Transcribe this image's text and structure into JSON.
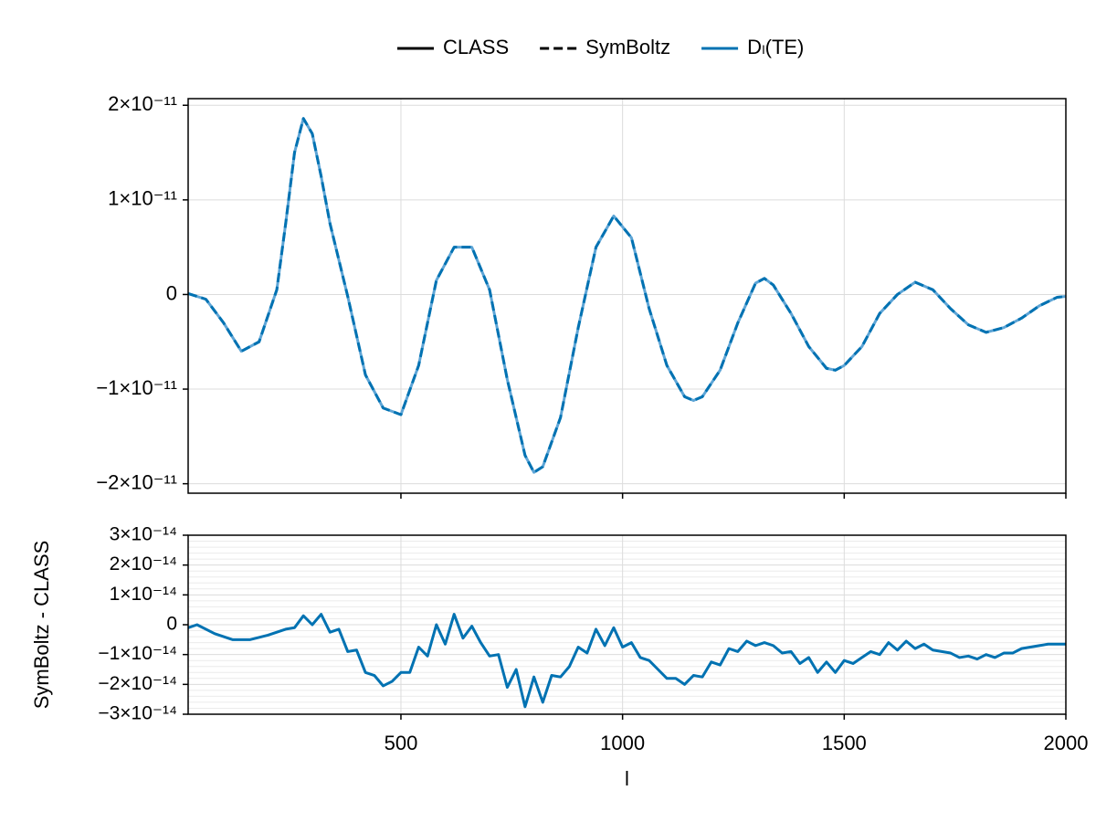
{
  "chart_data": [
    {
      "type": "line",
      "x": [
        20,
        60,
        100,
        140,
        180,
        220,
        240,
        260,
        280,
        300,
        320,
        340,
        380,
        420,
        460,
        500,
        540,
        580,
        620,
        660,
        700,
        740,
        780,
        800,
        820,
        860,
        900,
        940,
        980,
        1020,
        1060,
        1100,
        1140,
        1160,
        1180,
        1220,
        1260,
        1300,
        1320,
        1340,
        1380,
        1420,
        1460,
        1480,
        1500,
        1540,
        1580,
        1620,
        1660,
        1700,
        1740,
        1780,
        1820,
        1860,
        1900,
        1940,
        1980,
        2000
      ],
      "series": [
        {
          "name": "CLASS",
          "color": "#5ea5d6",
          "dash": "solid",
          "values": [
            1e-13,
            -5e-13,
            -3e-12,
            -6e-12,
            -5e-12,
            5e-13,
            7.5e-12,
            1.5e-11,
            1.86e-11,
            1.7e-11,
            1.25e-11,
            7.5e-12,
            -2e-13,
            -8.5e-12,
            -1.2e-11,
            -1.27e-11,
            -7.5e-12,
            1.5e-12,
            5e-12,
            5e-12,
            5e-13,
            -9e-12,
            -1.7e-11,
            -1.88e-11,
            -1.82e-11,
            -1.3e-11,
            -3.5e-12,
            5e-12,
            8.3e-12,
            6e-12,
            -1.5e-12,
            -7.5e-12,
            -1.08e-11,
            -1.12e-11,
            -1.08e-11,
            -8e-12,
            -3e-12,
            1.2e-12,
            1.7e-12,
            1e-12,
            -2e-12,
            -5.5e-12,
            -7.8e-12,
            -8e-12,
            -7.5e-12,
            -5.5e-12,
            -2e-12,
            0.0,
            1.3e-12,
            5e-13,
            -1.5e-12,
            -3.2e-12,
            -4e-12,
            -3.5e-12,
            -2.5e-12,
            -1.2e-12,
            -3e-13,
            -2e-13
          ]
        },
        {
          "name": "SymBoltz",
          "color": "#0072b2",
          "dash": "dashed",
          "values": [
            1e-13,
            -5e-13,
            -3e-12,
            -6e-12,
            -5e-12,
            5e-13,
            7.5e-12,
            1.5e-11,
            1.86e-11,
            1.7e-11,
            1.25e-11,
            7.5e-12,
            -2e-13,
            -8.5e-12,
            -1.2e-11,
            -1.27e-11,
            -7.5e-12,
            1.5e-12,
            5e-12,
            5e-12,
            5e-13,
            -9e-12,
            -1.7e-11,
            -1.88e-11,
            -1.82e-11,
            -1.3e-11,
            -3.5e-12,
            5e-12,
            8.3e-12,
            6e-12,
            -1.5e-12,
            -7.5e-12,
            -1.08e-11,
            -1.12e-11,
            -1.08e-11,
            -8e-12,
            -3e-12,
            1.2e-12,
            1.7e-12,
            1e-12,
            -2e-12,
            -5.5e-12,
            -7.8e-12,
            -8e-12,
            -7.5e-12,
            -5.5e-12,
            -2e-12,
            0.0,
            1.3e-12,
            5e-13,
            -1.5e-12,
            -3.2e-12,
            -4e-12,
            -3.5e-12,
            -2.5e-12,
            -1.2e-12,
            -3e-13,
            -2e-13
          ]
        }
      ],
      "quantity": {
        "name": "Dₗ(TE)",
        "color": "#0072b2"
      },
      "legend": "top",
      "legend_color": "#000000",
      "xlim": [
        20,
        2000
      ],
      "xticks": [
        500,
        1000,
        1500,
        2000
      ],
      "show_xtick_labels": false,
      "ylim": [
        -2.1e-11,
        2.07e-11
      ],
      "yticks": [
        {
          "value": -2e-11,
          "label": "−2×10⁻¹¹"
        },
        {
          "value": -1e-11,
          "label": "−1×10⁻¹¹"
        },
        0,
        {
          "value": 1e-11,
          "label": "1×10⁻¹¹"
        },
        {
          "value": 2e-11,
          "label": "2×10⁻¹¹"
        }
      ],
      "grid": true
    },
    {
      "type": "line",
      "x": [
        20,
        40,
        80,
        120,
        160,
        200,
        240,
        260,
        280,
        300,
        320,
        340,
        360,
        380,
        400,
        420,
        440,
        460,
        480,
        500,
        520,
        540,
        560,
        580,
        600,
        620,
        640,
        660,
        680,
        700,
        720,
        740,
        760,
        780,
        800,
        820,
        840,
        860,
        880,
        900,
        920,
        940,
        960,
        980,
        1000,
        1020,
        1040,
        1060,
        1080,
        1100,
        1120,
        1140,
        1160,
        1180,
        1200,
        1220,
        1240,
        1260,
        1280,
        1300,
        1320,
        1340,
        1360,
        1380,
        1400,
        1420,
        1440,
        1460,
        1480,
        1500,
        1520,
        1540,
        1560,
        1580,
        1600,
        1620,
        1640,
        1660,
        1680,
        1700,
        1720,
        1740,
        1760,
        1780,
        1800,
        1820,
        1840,
        1860,
        1880,
        1900,
        1920,
        1940,
        1960,
        2000
      ],
      "series": [
        {
          "name": "SymBoltz - CLASS",
          "color": "#0072b2",
          "dash": "solid",
          "values": [
            -1e-15,
            0.0,
            -3e-15,
            -5e-15,
            -5e-15,
            -3.5e-15,
            -1.5e-15,
            -1e-15,
            3e-15,
            0.0,
            3.5e-15,
            -2.5e-15,
            -1.5e-15,
            -9e-15,
            -8.5e-15,
            -1.6e-14,
            -1.7e-14,
            -2.05e-14,
            -1.9e-14,
            -1.6e-14,
            -1.6e-14,
            -7.5e-15,
            -1.05e-14,
            0.0,
            -6.5e-15,
            3.5e-15,
            -4.5e-15,
            -5e-16,
            -6e-15,
            -1.05e-14,
            -1e-14,
            -2.1e-14,
            -1.5e-14,
            -2.75e-14,
            -1.75e-14,
            -2.6e-14,
            -1.7e-14,
            -1.75e-14,
            -1.4e-14,
            -7.5e-15,
            -9.5e-15,
            -1.5e-15,
            -7e-15,
            -1e-15,
            -7.5e-15,
            -6e-15,
            -1.1e-14,
            -1.2e-14,
            -1.5e-14,
            -1.8e-14,
            -1.8e-14,
            -2e-14,
            -1.7e-14,
            -1.75e-14,
            -1.25e-14,
            -1.35e-14,
            -8e-15,
            -9e-15,
            -5.5e-15,
            -7e-15,
            -6e-15,
            -7e-15,
            -9.5e-15,
            -9e-15,
            -1.3e-14,
            -1.1e-14,
            -1.6e-14,
            -1.25e-14,
            -1.6e-14,
            -1.2e-14,
            -1.3e-14,
            -1.1e-14,
            -9e-15,
            -1e-14,
            -6e-15,
            -8.5e-15,
            -5.5e-15,
            -8e-15,
            -6.5e-15,
            -8.5e-15,
            -9e-15,
            -9.5e-15,
            -1.1e-14,
            -1.05e-14,
            -1.15e-14,
            -1e-14,
            -1.1e-14,
            -9.5e-15,
            -9.5e-15,
            -8e-15,
            -7.5e-15,
            -7e-15,
            -6.5e-15,
            -6.5e-15
          ]
        }
      ],
      "xlabel": "l",
      "ylabel": "SymBoltz - CLASS",
      "xlim": [
        20,
        2000
      ],
      "xticks": [
        500,
        1000,
        1500,
        2000
      ],
      "show_xtick_labels": true,
      "ylim": [
        -3e-14,
        3e-14
      ],
      "yticks": [
        {
          "value": -3e-14,
          "label": "−3×10⁻¹⁴"
        },
        {
          "value": -2e-14,
          "label": "−2×10⁻¹⁴"
        },
        {
          "value": -1e-14,
          "label": "−1×10⁻¹⁴"
        },
        0,
        {
          "value": 1e-14,
          "label": "1×10⁻¹⁴"
        },
        {
          "value": 2e-14,
          "label": "2×10⁻¹⁴"
        },
        {
          "value": 3e-14,
          "label": "3×10⁻¹⁴"
        }
      ],
      "grid": true,
      "minor_grid": true
    }
  ]
}
